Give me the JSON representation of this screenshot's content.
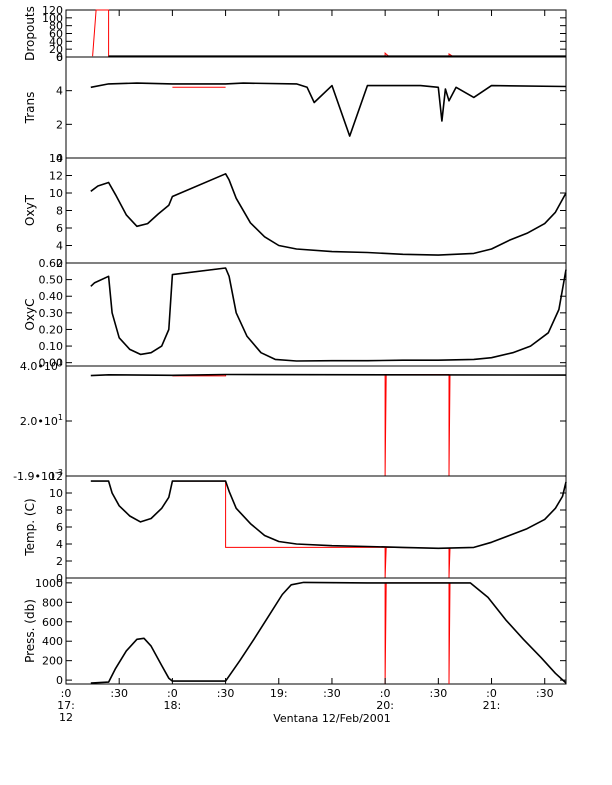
{
  "chart_data": {
    "type": "line",
    "figure_title": "Ventana 12/Feb/2001",
    "x_axis": {
      "ticks": [
        {
          "t": 0,
          "top": ":0",
          "mid": "17:",
          "bot": "12"
        },
        {
          "t": 30,
          "top": ":30",
          "mid": "",
          "bot": ""
        },
        {
          "t": 60,
          "top": ":0",
          "mid": "18:",
          "bot": ""
        },
        {
          "t": 90,
          "top": ":30",
          "mid": "",
          "bot": ""
        },
        {
          "t": 120,
          "top": "19:",
          "mid": "",
          "bot": ""
        },
        {
          "t": 150,
          "top": ":30",
          "mid": "",
          "bot": ""
        },
        {
          "t": 180,
          "top": ":0",
          "mid": "20:",
          "bot": ""
        },
        {
          "t": 210,
          "top": ":30",
          "mid": "",
          "bot": ""
        },
        {
          "t": 240,
          "top": ":0",
          "mid": "21:",
          "bot": ""
        },
        {
          "t": 270,
          "top": ":30",
          "mid": "",
          "bot": ""
        }
      ],
      "range_minutes_after_1700": [
        0,
        282
      ]
    },
    "panels": [
      {
        "id": "dropouts",
        "ylabel": "Dropouts",
        "ylim": [
          0,
          120
        ],
        "yticks": [
          {
            "v": 0,
            "l": "0"
          },
          {
            "v": 20,
            "l": "20"
          },
          {
            "v": 40,
            "l": "40"
          },
          {
            "v": 60,
            "l": "60"
          },
          {
            "v": 80,
            "l": "80"
          },
          {
            "v": 100,
            "l": "100"
          },
          {
            "v": 120,
            "l": "120"
          }
        ],
        "series": [
          {
            "color": "#000000",
            "x": [
              24,
              60,
              90,
              170,
              185,
              215,
              240,
              282
            ],
            "y": [
              2,
              2,
              2,
              2,
              2,
              2,
              2,
              2
            ]
          }
        ],
        "red": {
          "x": [
            15,
            17,
            24,
            24,
            90,
            90,
            180,
            180,
            182,
            216,
            216,
            218,
            282
          ],
          "y": [
            2,
            120,
            120,
            2,
            2,
            2,
            2,
            10,
            2,
            2,
            8,
            2,
            2
          ]
        }
      },
      {
        "id": "trans",
        "ylabel": "Trans",
        "ylim": [
          0,
          6
        ],
        "yticks": [
          {
            "v": 0,
            "l": "0"
          },
          {
            "v": 2,
            "l": "2"
          },
          {
            "v": 4,
            "l": "4"
          },
          {
            "v": 6,
            "l": "6"
          }
        ],
        "series": [
          {
            "color": "#000000",
            "x": [
              14,
              24,
              40,
              60,
              90,
              100,
              130,
              136,
              140,
              150,
              160,
              170,
              200,
              210,
              212,
              214,
              216,
              220,
              230,
              240,
              282
            ],
            "y": [
              4.2,
              4.4,
              4.45,
              4.4,
              4.4,
              4.45,
              4.4,
              4.2,
              3.3,
              4.3,
              1.3,
              4.3,
              4.3,
              4.2,
              2.2,
              4.1,
              3.4,
              4.2,
              3.6,
              4.3,
              4.25
            ]
          }
        ],
        "red": {
          "x": [
            60,
            90
          ],
          "y": [
            4.2,
            4.2
          ]
        }
      },
      {
        "id": "oxyt",
        "ylabel": "OxyT",
        "ylim": [
          2,
          14
        ],
        "yticks": [
          {
            "v": 2,
            "l": "2"
          },
          {
            "v": 4,
            "l": "4"
          },
          {
            "v": 6,
            "l": "6"
          },
          {
            "v": 8,
            "l": "8"
          },
          {
            "v": 10,
            "l": "10"
          },
          {
            "v": 12,
            "l": "12"
          },
          {
            "v": 14,
            "l": "14"
          }
        ],
        "series": [
          {
            "color": "#000000",
            "x": [
              14,
              18,
              24,
              28,
              34,
              40,
              46,
              52,
              58,
              60,
              90,
              92,
              96,
              104,
              112,
              120,
              130,
              150,
              170,
              190,
              210,
              230,
              240,
              250,
              260,
              270,
              276,
              282
            ],
            "y": [
              10.2,
              10.8,
              11.2,
              9.8,
              7.5,
              6.2,
              6.5,
              7.6,
              8.6,
              9.6,
              12.2,
              11.5,
              9.4,
              6.6,
              5.0,
              4.0,
              3.6,
              3.3,
              3.2,
              3.0,
              2.9,
              3.1,
              3.6,
              4.6,
              5.4,
              6.5,
              7.8,
              10.0
            ]
          }
        ],
        "red": {
          "x": [
            60,
            90
          ],
          "y": [
            9.6,
            12.2
          ]
        }
      },
      {
        "id": "oxyc",
        "ylabel": "OxyC",
        "ylim": [
          -0.02,
          0.6
        ],
        "yticks": [
          {
            "v": 0.0,
            "l": "0.00"
          },
          {
            "v": 0.1,
            "l": "0.10"
          },
          {
            "v": 0.2,
            "l": "0.20"
          },
          {
            "v": 0.3,
            "l": "0.30"
          },
          {
            "v": 0.4,
            "l": "0.40"
          },
          {
            "v": 0.5,
            "l": "0.50"
          },
          {
            "v": 0.6,
            "l": "0.60"
          }
        ],
        "series": [
          {
            "color": "#000000",
            "x": [
              14,
              16,
              24,
              26,
              30,
              36,
              42,
              48,
              54,
              58,
              60,
              90,
              92,
              96,
              102,
              110,
              118,
              130,
              150,
              170,
              190,
              210,
              230,
              240,
              252,
              262,
              272,
              278,
              282
            ],
            "y": [
              0.46,
              0.48,
              0.52,
              0.3,
              0.15,
              0.08,
              0.05,
              0.06,
              0.1,
              0.2,
              0.53,
              0.57,
              0.52,
              0.3,
              0.16,
              0.06,
              0.02,
              0.01,
              0.012,
              0.012,
              0.015,
              0.015,
              0.02,
              0.03,
              0.06,
              0.1,
              0.18,
              0.32,
              0.56
            ]
          }
        ],
        "red": {
          "x": [
            60,
            90
          ],
          "y": [
            0.53,
            0.57
          ]
        }
      },
      {
        "id": "spike",
        "ylabel": "",
        "ylim": [
          -0.0019,
          40
        ],
        "yticks": [
          {
            "v": -0.0019,
            "l": "-1.9•10",
            "e": "-3"
          },
          {
            "v": 20,
            "l": "2.0•10",
            "e": "1"
          },
          {
            "v": 40,
            "l": "4.0•10",
            "e": "1"
          }
        ],
        "series": [
          {
            "color": "#000000",
            "x": [
              14,
              24,
              60,
              90,
              282
            ],
            "y": [
              36.5,
              36.8,
              36.6,
              36.9,
              36.7
            ]
          }
        ],
        "red": {
          "x": [
            60,
            90,
            90,
            180,
            180,
            180.6,
            216,
            216,
            216.6
          ],
          "y": [
            36.4,
            36.4,
            36.9,
            36.9,
            -0.0019,
            36.9,
            36.9,
            -0.0019,
            36.9
          ]
        }
      },
      {
        "id": "temp",
        "ylabel": "Temp. (C)",
        "ylim": [
          0,
          12
        ],
        "yticks": [
          {
            "v": 0,
            "l": "0"
          },
          {
            "v": 2,
            "l": "2"
          },
          {
            "v": 4,
            "l": "4"
          },
          {
            "v": 6,
            "l": "6"
          },
          {
            "v": 8,
            "l": "8"
          },
          {
            "v": 10,
            "l": "10"
          },
          {
            "v": 12,
            "l": "12"
          }
        ],
        "series": [
          {
            "color": "#000000",
            "x": [
              14,
              24,
              26,
              30,
              36,
              42,
              48,
              54,
              58,
              60,
              90,
              92,
              96,
              104,
              112,
              120,
              130,
              150,
              170,
              190,
              210,
              230,
              240,
              250,
              260,
              270,
              276,
              280,
              282
            ],
            "y": [
              11.4,
              11.4,
              10.0,
              8.5,
              7.3,
              6.6,
              7.0,
              8.2,
              9.5,
              11.4,
              11.4,
              10.2,
              8.2,
              6.4,
              5.0,
              4.3,
              4.0,
              3.8,
              3.7,
              3.6,
              3.5,
              3.6,
              4.2,
              5.0,
              5.8,
              6.9,
              8.2,
              9.6,
              11.3
            ]
          }
        ],
        "red": {
          "x": [
            60,
            90,
            90,
            180,
            180,
            180.6,
            216,
            216,
            216.6
          ],
          "y": [
            11.4,
            11.4,
            3.6,
            3.6,
            0,
            3.6,
            3.5,
            0,
            3.5
          ]
        }
      },
      {
        "id": "press",
        "ylabel": "Press. (db)",
        "ylim": [
          -40,
          1050
        ],
        "yticks": [
          {
            "v": 0,
            "l": "0"
          },
          {
            "v": 200,
            "l": "200"
          },
          {
            "v": 400,
            "l": "400"
          },
          {
            "v": 600,
            "l": "600"
          },
          {
            "v": 800,
            "l": "800"
          },
          {
            "v": 1000,
            "l": "1000"
          }
        ],
        "series": [
          {
            "color": "#000000",
            "x": [
              14,
              24,
              28,
              34,
              40,
              44,
              48,
              54,
              58,
              60,
              90,
              98,
              106,
              114,
              122,
              127,
              134,
              170,
              190,
              210,
              228,
              238,
              248,
              258,
              268,
              276,
              282
            ],
            "y": [
              -30,
              -20,
              120,
              300,
              420,
              430,
              350,
              150,
              20,
              -10,
              -10,
              200,
              420,
              650,
              880,
              980,
              1005,
              1000,
              1000,
              1000,
              1000,
              850,
              620,
              420,
              230,
              70,
              -30
            ]
          }
        ],
        "red": {
          "x": [
            180,
            180,
            180.6,
            216,
            216,
            216.6
          ],
          "y": [
            1000,
            -40,
            1000,
            1000,
            -40,
            1000
          ]
        }
      }
    ]
  }
}
